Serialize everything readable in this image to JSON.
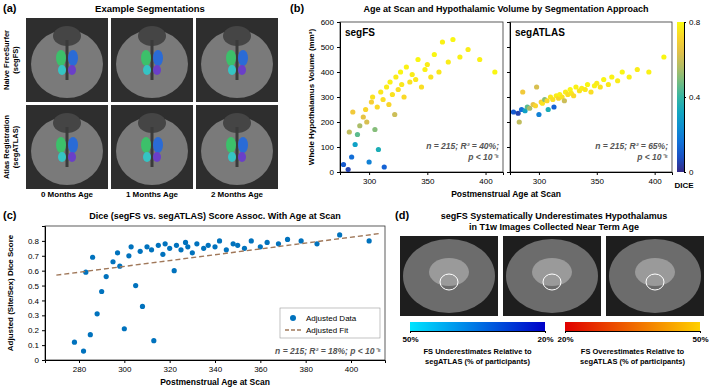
{
  "figure": {
    "panel_a": {
      "label": "(a)",
      "title": "Example Segmentations",
      "row_labels": [
        [
          "Naive FreeSurfer",
          "(segFS)"
        ],
        [
          "Atlas Registration",
          "(segATLAS)"
        ]
      ],
      "column_labels": [
        "0 Months Age",
        "1 Months Age",
        "2 Months Age"
      ]
    },
    "panel_b": {
      "label": "(b)",
      "title": "Age at Scan and Hypothalamic Volume by Segmentation Approach",
      "xlabel": "Postmenstrual Age at Scan",
      "ylabel": "Whole Hypothalamus Volume (mm³)",
      "colorbar": {
        "label": "DICE",
        "range": [
          0,
          0.8
        ],
        "ticks": [
          0,
          0.4,
          0.8
        ]
      }
    },
    "panel_c": {
      "label": "(c)"
    },
    "panel_d": {
      "label": "(d)",
      "title": [
        "segFS Systematically Underestimates Hypothalamus",
        "in T1w Images Collected Near Term Age"
      ],
      "colorbars": [
        {
          "label": [
            "FS Underestimates Relative to",
            "segATLAS (% of participants)"
          ],
          "range": [
            50,
            20
          ],
          "ticks": [
            {
              "value": 50,
              "label": "50%"
            },
            {
              "value": 20,
              "label": "20%"
            }
          ]
        },
        {
          "label": [
            "FS Overestimates Relative to",
            "segATLAS (% of participants)"
          ],
          "range": [
            20,
            50
          ],
          "ticks": [
            {
              "value": 20,
              "label": "20%"
            },
            {
              "value": 50,
              "label": "50%"
            }
          ]
        }
      ]
    }
  },
  "chart_data": [
    {
      "type": "scatter",
      "title": "segFS",
      "annotation": [
        "n = 215; R² = 40%;",
        "p < 10⁻⁵"
      ],
      "x": [
        278,
        282,
        285,
        288,
        290,
        292,
        295,
        297,
        300,
        302,
        303,
        305,
        307,
        308,
        310,
        312,
        313,
        315,
        317,
        318,
        320,
        322,
        323,
        325,
        327,
        328,
        330,
        332,
        335,
        337,
        340,
        342,
        345,
        348,
        350,
        353,
        356,
        360,
        363,
        368,
        372,
        378,
        385,
        395,
        408,
        298,
        286,
        283
      ],
      "values": [
        30,
        10,
        60,
        110,
        150,
        185,
        220,
        250,
        40,
        280,
        300,
        170,
        260,
        90,
        320,
        290,
        20,
        340,
        270,
        360,
        310,
        230,
        380,
        330,
        400,
        350,
        300,
        420,
        360,
        390,
        370,
        450,
        340,
        410,
        430,
        380,
        470,
        400,
        520,
        440,
        530,
        460,
        490,
        450,
        400,
        200,
        240,
        160
      ],
      "dice": [
        0.1,
        0.05,
        0.15,
        0.3,
        0.45,
        0.55,
        0.65,
        0.72,
        0.2,
        0.7,
        0.75,
        0.5,
        0.73,
        0.35,
        0.76,
        0.74,
        0.12,
        0.77,
        0.72,
        0.78,
        0.75,
        0.6,
        0.77,
        0.74,
        0.79,
        0.76,
        0.73,
        0.78,
        0.75,
        0.77,
        0.76,
        0.79,
        0.74,
        0.78,
        0.77,
        0.75,
        0.79,
        0.76,
        0.78,
        0.77,
        0.79,
        0.78,
        0.77,
        0.78,
        0.79,
        0.62,
        0.68,
        0.58
      ],
      "xlim": [
        275,
        415
      ],
      "xticks": [
        300,
        350,
        400
      ],
      "ylim": [
        0,
        600
      ],
      "yticks": [
        0,
        100,
        200,
        300,
        400,
        500,
        600
      ]
    },
    {
      "type": "scatter",
      "title": "segATLAS",
      "tick_labels": "x",
      "annotation": [
        "n = 215; R² = 65%;",
        "p < 10⁻⁵"
      ],
      "x": [
        278,
        282,
        285,
        288,
        290,
        292,
        295,
        297,
        300,
        302,
        303,
        305,
        307,
        308,
        310,
        312,
        313,
        315,
        317,
        318,
        320,
        322,
        323,
        325,
        327,
        328,
        330,
        332,
        335,
        337,
        340,
        342,
        345,
        348,
        350,
        353,
        356,
        360,
        363,
        368,
        372,
        378,
        385,
        395,
        408,
        298,
        286,
        283
      ],
      "values": [
        240,
        235,
        250,
        245,
        260,
        255,
        270,
        265,
        230,
        280,
        275,
        290,
        285,
        250,
        300,
        290,
        260,
        305,
        295,
        310,
        300,
        285,
        320,
        310,
        330,
        315,
        305,
        340,
        325,
        335,
        330,
        350,
        320,
        345,
        355,
        340,
        370,
        350,
        380,
        365,
        400,
        380,
        410,
        400,
        460,
        340,
        320,
        200
      ],
      "dice": [
        0.1,
        0.05,
        0.15,
        0.3,
        0.45,
        0.55,
        0.65,
        0.72,
        0.2,
        0.7,
        0.75,
        0.5,
        0.73,
        0.35,
        0.76,
        0.74,
        0.12,
        0.77,
        0.72,
        0.78,
        0.75,
        0.6,
        0.77,
        0.74,
        0.79,
        0.76,
        0.73,
        0.78,
        0.75,
        0.77,
        0.76,
        0.79,
        0.74,
        0.78,
        0.77,
        0.75,
        0.79,
        0.76,
        0.78,
        0.77,
        0.79,
        0.78,
        0.77,
        0.78,
        0.79,
        0.62,
        0.68,
        0.58
      ],
      "xlim": [
        275,
        415
      ],
      "xticks": [
        300,
        350,
        400
      ],
      "ylim": [
        0,
        600
      ],
      "yticks": [
        0,
        100,
        200,
        300,
        400,
        500,
        600
      ]
    },
    {
      "type": "scatter",
      "title": "Dice (segFS vs. segATLAS) Score Assoc. With Age at Scan",
      "xlabel": "Postmenstrual Age at Scan",
      "ylabel": "Adjusted (Site/Sex) Dice Score",
      "annotation": "n = 215; R² = 18%; p < 10⁻⁵",
      "legend": "lower right",
      "series": [
        {
          "name": "Adjusted Data",
          "type": "scatter",
          "color": "#0072bd",
          "x": [
            278,
            282,
            285,
            288,
            290,
            292,
            295,
            297,
            300,
            302,
            303,
            305,
            307,
            308,
            310,
            312,
            313,
            315,
            317,
            318,
            320,
            322,
            323,
            325,
            327,
            328,
            330,
            332,
            335,
            337,
            340,
            342,
            345,
            348,
            350,
            353,
            356,
            360,
            363,
            368,
            372,
            378,
            385,
            395,
            408,
            298,
            286,
            283
          ],
          "values": [
            0.12,
            0.06,
            0.17,
            0.31,
            0.46,
            0.56,
            0.66,
            0.72,
            0.21,
            0.7,
            0.76,
            0.5,
            0.73,
            0.36,
            0.76,
            0.74,
            0.13,
            0.77,
            0.71,
            0.78,
            0.75,
            0.6,
            0.77,
            0.74,
            0.79,
            0.76,
            0.72,
            0.78,
            0.75,
            0.77,
            0.76,
            0.8,
            0.74,
            0.78,
            0.77,
            0.75,
            0.8,
            0.76,
            0.79,
            0.78,
            0.81,
            0.8,
            0.78,
            0.84,
            0.8,
            0.63,
            0.69,
            0.59
          ]
        },
        {
          "name": "Adjusted Fit",
          "type": "line",
          "line_style": "dashed",
          "color": "#a0785a",
          "x": [
            270,
            413
          ],
          "values": [
            0.57,
            0.85
          ]
        }
      ],
      "xlim": [
        265,
        415
      ],
      "xticks": [
        280,
        300,
        320,
        340,
        360,
        380,
        400
      ],
      "ylim": [
        0,
        0.9
      ],
      "yticks": [
        0,
        0.1,
        0.2,
        0.3,
        0.4,
        0.5,
        0.6,
        0.7,
        0.8
      ]
    }
  ]
}
